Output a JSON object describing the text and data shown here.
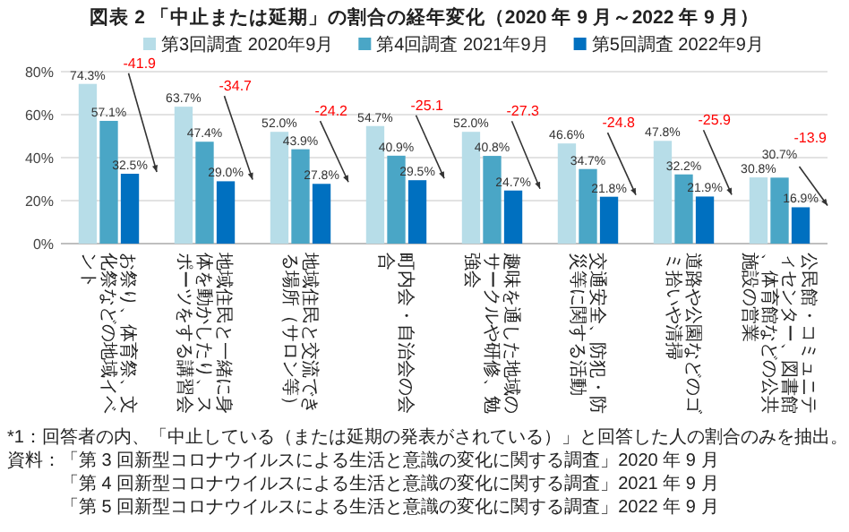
{
  "chart_data": {
    "type": "bar",
    "title": "図表 2 「中止または延期」の割合の経年変化（2020 年 9 月～2022 年 9 月）",
    "categories": [
      "お祭り、体育祭、文化祭などの地域イベント",
      "地域住民と一緒に身体を動かしたり、スポーツをする講習会",
      "地域住民と交流できる場所（サロン等）",
      "町内会・自治会の会合",
      "趣味を通した地域のサークルや研修、勉強会",
      "交通安全、防犯・防災等に関する活動",
      "道路や公園などのゴミ拾いや清掃",
      "公民館・コミュニティセンター、図書館、体育館などの公共施設の営業"
    ],
    "series": [
      {
        "name": "第3回調査 2020年9月",
        "color": "#b7dde8",
        "values": [
          74.3,
          63.7,
          52.0,
          54.7,
          52.0,
          46.6,
          47.8,
          30.8
        ],
        "value_labels": [
          "74.3%",
          "63.7%",
          "52.0%",
          "54.7%",
          "52.0%",
          "46.6%",
          "47.8%",
          "30.8%"
        ]
      },
      {
        "name": "第4回調査 2021年9月",
        "color": "#4aa6c6",
        "values": [
          57.1,
          47.4,
          43.9,
          40.9,
          40.8,
          34.7,
          32.2,
          30.7
        ],
        "value_labels": [
          "57.1%",
          "47.4%",
          "43.9%",
          "40.9%",
          "40.8%",
          "34.7%",
          "32.2%",
          "30.7%"
        ]
      },
      {
        "name": "第5回調査 2022年9月",
        "color": "#0070c0",
        "values": [
          32.5,
          29.0,
          27.8,
          29.5,
          24.7,
          21.8,
          21.9,
          16.9
        ],
        "value_labels": [
          "32.5%",
          "29.0%",
          "27.8%",
          "29.5%",
          "24.7%",
          "21.8%",
          "21.9%",
          "16.9%"
        ]
      }
    ],
    "ylim": [
      0,
      80
    ],
    "yticks": [
      {
        "value": 0,
        "label": "0%"
      },
      {
        "value": 20,
        "label": "20%"
      },
      {
        "value": 40,
        "label": "40%"
      },
      {
        "value": 60,
        "label": "60%"
      },
      {
        "value": 80,
        "label": "80%"
      }
    ],
    "grid": "y",
    "legend": "top",
    "annotations": [
      "-41.9",
      "-34.7",
      "-24.2",
      "-25.1",
      "-27.3",
      "-24.8",
      "-25.9",
      "-13.9",
      "*1：回答者の内、「中止している（または延期の発表がされている）」と回答した人の割合のみを抽出。",
      "資料：「第 3 回新型コロナウイルスによる生活と意識の変化に関する調査」2020 年 9 月",
      "「第 4 回新型コロナウイルスによる生活と意識の変化に関する調査」2021 年 9 月",
      "「第 5 回新型コロナウイルスによる生活と意識の変化に関する調査」2022 年 9 月"
    ]
  }
}
